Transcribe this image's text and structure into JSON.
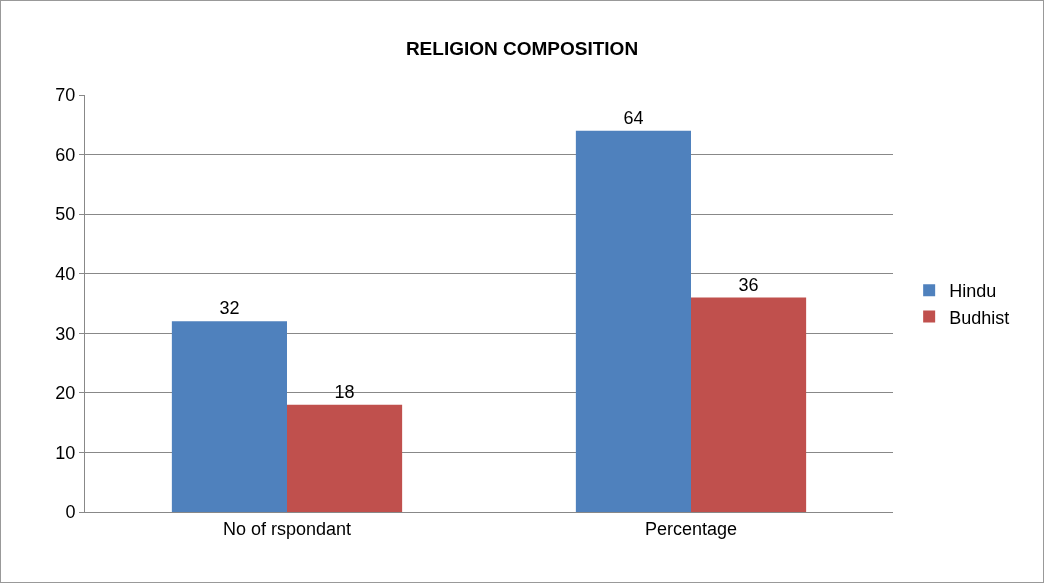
{
  "chart_data": {
    "type": "bar",
    "title": "RELIGION COMPOSITION",
    "categories": [
      "No of rspondant",
      "Percentage"
    ],
    "series": [
      {
        "name": "Hindu",
        "color": "#4f81bd",
        "values": [
          32,
          64
        ]
      },
      {
        "name": "Budhist",
        "color": "#c0504d",
        "values": [
          18,
          36
        ]
      }
    ],
    "ylim": [
      0,
      70
    ],
    "yticks": [
      0,
      10,
      20,
      30,
      40,
      50,
      60,
      70
    ],
    "grid": "y",
    "legend": "right",
    "data_labels": true
  }
}
